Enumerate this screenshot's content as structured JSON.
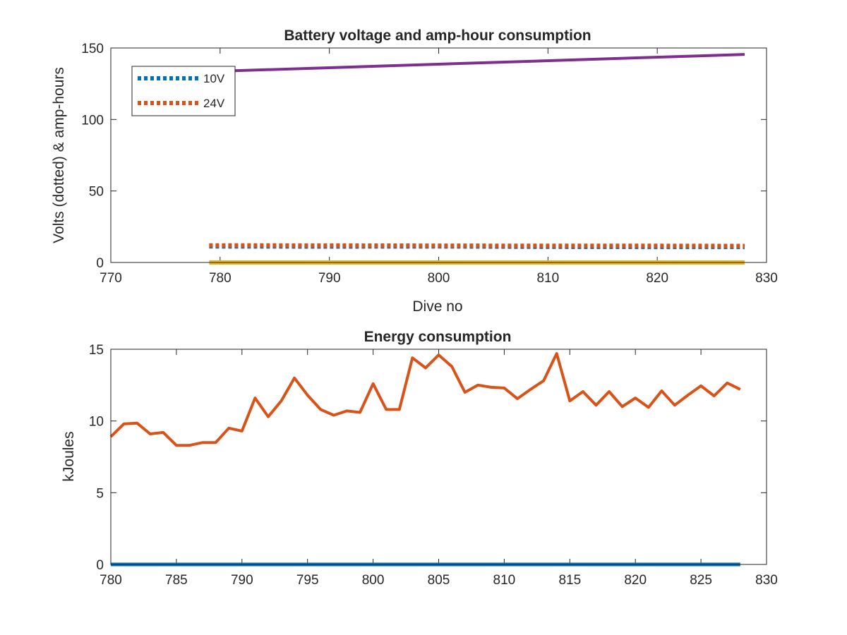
{
  "chart_data": [
    {
      "type": "line",
      "title": "Battery voltage and amp-hour consumption",
      "xlabel": "Dive no",
      "ylabel": "Volts (dotted) & amp-hours",
      "xlim": [
        770,
        830
      ],
      "ylim": [
        0,
        150
      ],
      "xticks": [
        "770",
        "780",
        "790",
        "800",
        "810",
        "820",
        "830"
      ],
      "yticks": [
        "0",
        "50",
        "100",
        "150"
      ],
      "grid": false,
      "legend_position": "top-left",
      "series": [
        {
          "name": "10V",
          "style": "dotted",
          "color": "#0072BD",
          "x": [
            779,
            790,
            800,
            810,
            820,
            828
          ],
          "y": [
            11.2,
            11.1,
            11.2,
            10.9,
            10.8,
            10.8
          ]
        },
        {
          "name": "24V",
          "style": "dotted",
          "color": "#D95319",
          "x": [
            779,
            790,
            800,
            810,
            820,
            828
          ],
          "y": [
            12,
            11.9,
            11.8,
            11.7,
            11.7,
            11.6
          ]
        },
        {
          "style": "solid",
          "color": "#EDB120",
          "x": [
            779,
            828
          ],
          "y": [
            0,
            0
          ]
        },
        {
          "style": "solid",
          "color": "#7E2F8E",
          "x": [
            779,
            828
          ],
          "y": [
            133.5,
            145.5
          ]
        }
      ]
    },
    {
      "type": "line",
      "title": "Energy consumption",
      "xlabel": "",
      "ylabel": "kJoules",
      "xlim": [
        780,
        830
      ],
      "ylim": [
        0,
        15
      ],
      "xticks": [
        "780",
        "785",
        "790",
        "795",
        "800",
        "805",
        "810",
        "815",
        "820",
        "825",
        "830"
      ],
      "yticks": [
        "0",
        "5",
        "10",
        "15"
      ],
      "grid": false,
      "series": [
        {
          "style": "solid",
          "color": "#0072BD",
          "x": [
            780,
            828
          ],
          "y": [
            0,
            0
          ]
        },
        {
          "style": "solid",
          "color": "#D95319",
          "x": [
            780,
            781,
            782,
            783,
            784,
            785,
            786,
            787,
            788,
            789,
            790,
            791,
            792,
            793,
            794,
            795,
            796,
            797,
            798,
            799,
            800,
            801,
            802,
            803,
            804,
            805,
            806,
            807,
            808,
            809,
            810,
            811,
            812,
            813,
            814,
            815,
            816,
            817,
            818,
            819,
            820,
            821,
            822,
            823,
            824,
            825,
            826,
            827,
            828
          ],
          "y": [
            8.9,
            9.8,
            9.85,
            9.1,
            9.2,
            8.3,
            8.3,
            8.5,
            8.5,
            9.5,
            9.3,
            11.6,
            10.3,
            11.4,
            13.0,
            11.8,
            10.8,
            10.4,
            10.7,
            10.6,
            12.6,
            10.8,
            10.8,
            14.4,
            13.7,
            14.6,
            13.8,
            12.0,
            12.5,
            12.35,
            12.3,
            11.55,
            12.2,
            12.8,
            14.7,
            11.4,
            12.05,
            11.1,
            12.05,
            11.0,
            11.6,
            10.95,
            12.1,
            11.1,
            11.8,
            12.45,
            11.75,
            12.65,
            12.2
          ]
        }
      ]
    }
  ]
}
